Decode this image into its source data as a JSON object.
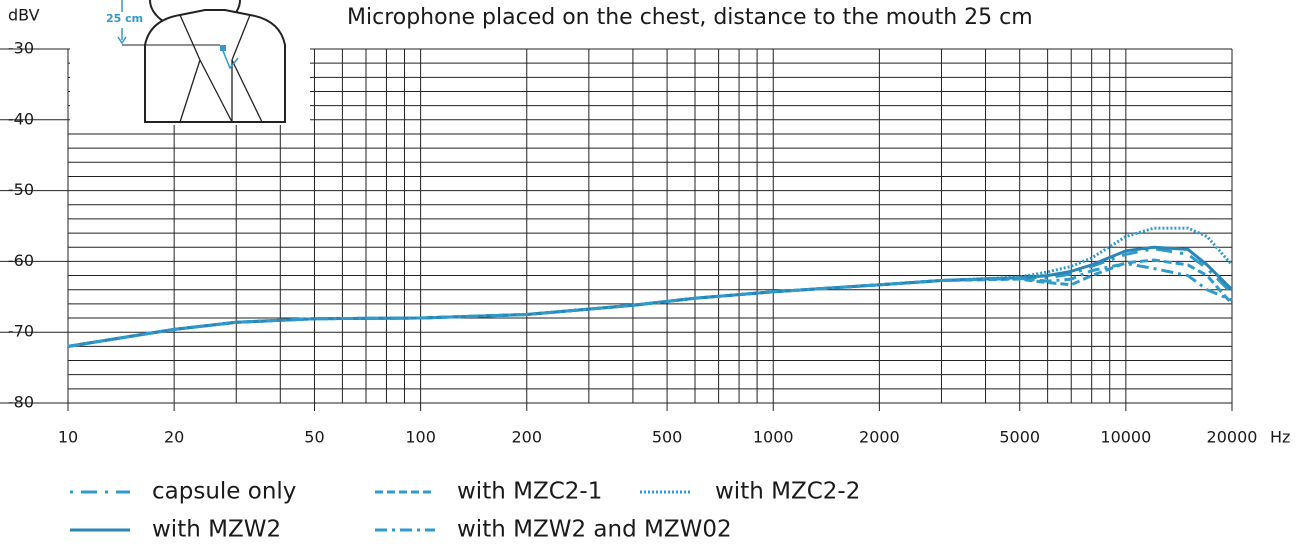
{
  "chart_data": {
    "type": "line",
    "title": "Microphone placed on the chest, distance to the mouth 25 cm",
    "y_label": "dBV",
    "x_unit": "Hz",
    "figure_label": "25 cm",
    "log_x": true,
    "xlim": [
      10,
      20000
    ],
    "ylim": [
      -80,
      -30
    ],
    "xticks": [
      10,
      20,
      50,
      100,
      200,
      500,
      1000,
      2000,
      5000,
      10000,
      20000
    ],
    "yticks": [
      -80,
      -70,
      -60,
      -50,
      -40,
      -30
    ],
    "xgrid": [
      10,
      20,
      30,
      40,
      50,
      60,
      70,
      80,
      90,
      100,
      200,
      300,
      400,
      500,
      600,
      700,
      800,
      900,
      1000,
      2000,
      3000,
      4000,
      5000,
      6000,
      7000,
      8000,
      9000,
      10000,
      20000
    ],
    "ygrid": [
      -80,
      -78,
      -76,
      -74,
      -72,
      -70,
      -68,
      -66,
      -64,
      -62,
      -60,
      -58,
      -56,
      -54,
      -52,
      -50,
      -48,
      -46,
      -44,
      -42,
      -40,
      -38,
      -36,
      -34,
      -32,
      -30
    ],
    "x": [
      10,
      15,
      20,
      30,
      50,
      100,
      200,
      400,
      600,
      1000,
      2000,
      3000,
      5000,
      6000,
      7000,
      8000,
      10000,
      12000,
      15000,
      17000,
      20000
    ],
    "series": [
      {
        "name": "capsule only",
        "color": "#2f9bcb",
        "dash": "3 8 16 8",
        "values": [
          -72,
          -70.6,
          -69.6,
          -68.6,
          -68.1,
          -68,
          -67.5,
          -66.2,
          -65.2,
          -64.3,
          -63.3,
          -62.7,
          -62.3,
          -62.3,
          -61.8,
          -60.7,
          -59,
          -58.2,
          -59,
          -61,
          -64.5
        ]
      },
      {
        "name": "with MZC2-1",
        "color": "#2f9bcb",
        "dash": "8 4",
        "values": [
          -72,
          -70.6,
          -69.6,
          -68.6,
          -68.1,
          -68,
          -67.5,
          -66.2,
          -65.2,
          -64.3,
          -63.3,
          -62.7,
          -62.5,
          -63,
          -63.3,
          -62,
          -60.2,
          -59.8,
          -60.5,
          -62,
          -66
        ]
      },
      {
        "name": "with MZC2-2",
        "color": "#2f9bcb",
        "dash": "2 2",
        "values": [
          -72,
          -70.6,
          -69.6,
          -68.6,
          -68.1,
          -68,
          -67.5,
          -66.2,
          -65.2,
          -64.3,
          -63.3,
          -62.7,
          -62.2,
          -61.5,
          -60.7,
          -59.5,
          -56.5,
          -55.3,
          -55.3,
          -56.5,
          -60.5
        ]
      },
      {
        "name": "with MZW2",
        "color": "#2a86b5",
        "dash": "",
        "values": [
          -72,
          -70.6,
          -69.6,
          -68.6,
          -68.1,
          -68,
          -67.5,
          -66.2,
          -65.2,
          -64.3,
          -63.3,
          -62.7,
          -62.3,
          -62,
          -61.4,
          -60.5,
          -58.5,
          -58,
          -58.3,
          -60.5,
          -64
        ]
      },
      {
        "name": "with MZW2 and MZW02",
        "color": "#2f9bcb",
        "dash": "12 5 3 5",
        "values": [
          -72,
          -70.6,
          -69.6,
          -68.6,
          -68.1,
          -68,
          -67.5,
          -66.2,
          -65.2,
          -64.3,
          -63.3,
          -62.7,
          -62.4,
          -62.8,
          -62.5,
          -61.3,
          -60.3,
          -61,
          -62,
          -64,
          -65.5
        ]
      }
    ]
  }
}
